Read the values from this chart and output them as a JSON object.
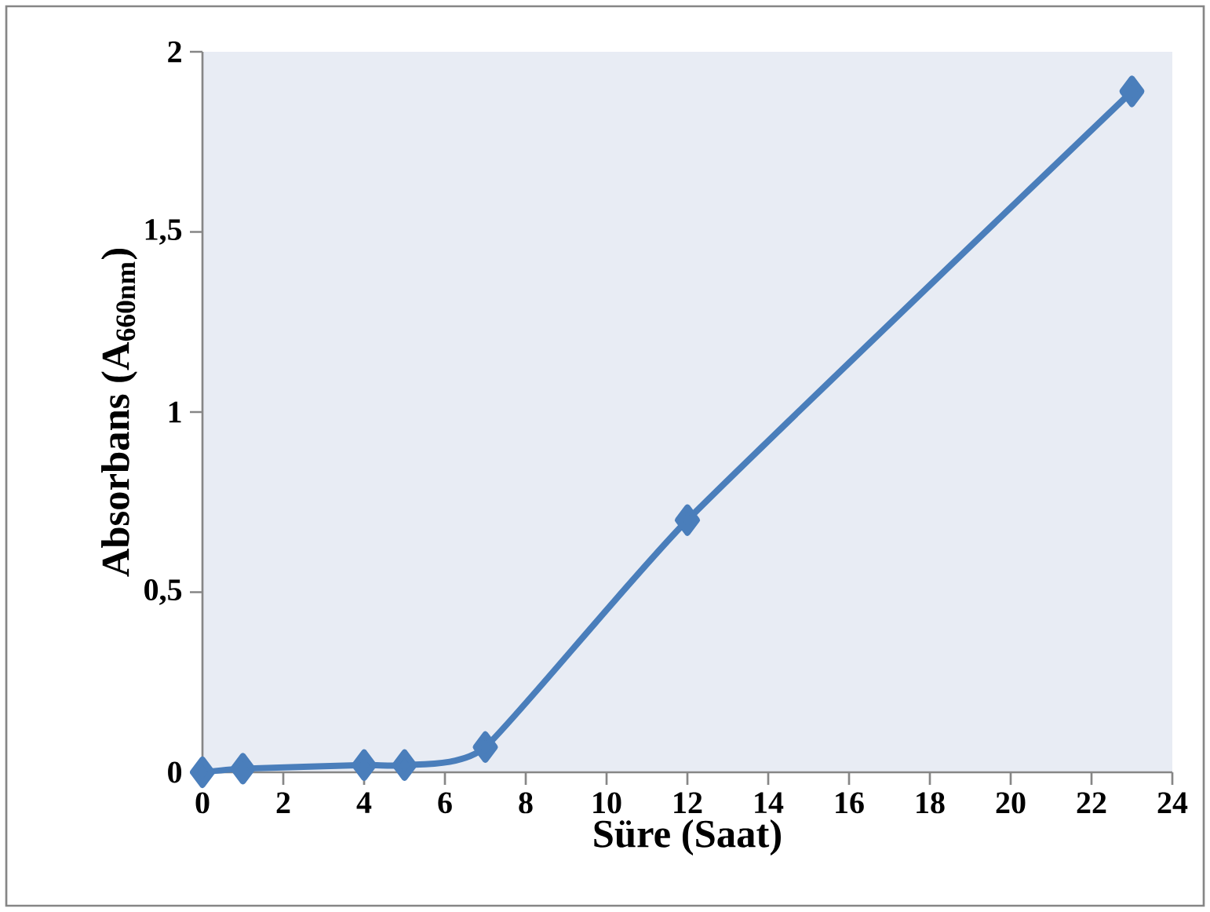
{
  "chart_data": {
    "type": "line",
    "xlabel": "Süre (Saat)",
    "ylabel": "Absorbans (A$_{660nm}$)",
    "x": [
      0,
      1,
      4,
      5,
      7,
      12,
      23
    ],
    "series": [
      {
        "color": "#4a7ebb",
        "values": [
          0,
          0.01,
          0.02,
          0.02,
          0.07,
          0.7,
          1.89
        ]
      }
    ],
    "xlim": [
      0,
      24
    ],
    "xticks": [
      0,
      2,
      4,
      6,
      8,
      10,
      12,
      14,
      16,
      18,
      20,
      22,
      24
    ],
    "ylim": [
      0,
      2
    ],
    "yticks": [
      0,
      {
        "value": 0.5,
        "label": "0,5"
      },
      1,
      {
        "value": 1.5,
        "label": "1,5"
      },
      2
    ],
    "marker": "diamond",
    "line_style": "solid"
  }
}
